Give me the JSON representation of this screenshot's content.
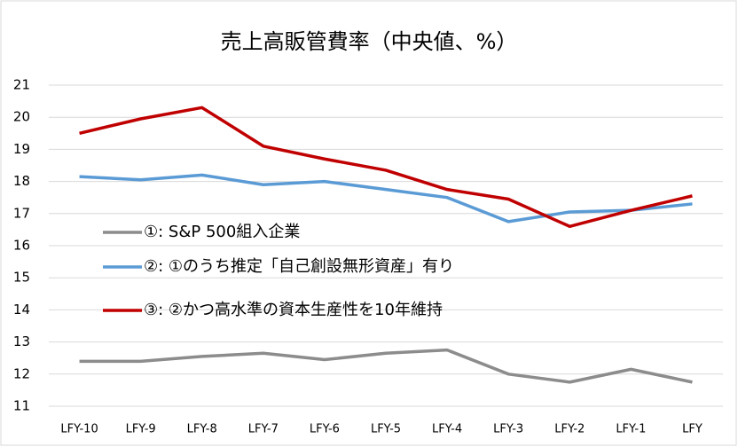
{
  "chart_data": {
    "type": "line",
    "title": "売上高販管費率（中央値、%）",
    "categories": [
      "LFY-10",
      "LFY-9",
      "LFY-8",
      "LFY-7",
      "LFY-6",
      "LFY-5",
      "LFY-4",
      "LFY-3",
      "LFY-2",
      "LFY-1",
      "LFY"
    ],
    "series": [
      {
        "name": "①: S&P 500組入企業",
        "color": "#8c8c8c",
        "values": [
          12.4,
          12.4,
          12.55,
          12.65,
          12.45,
          12.65,
          12.75,
          12.0,
          11.75,
          12.15,
          11.75
        ]
      },
      {
        "name": "②: ①のうち推定「自己創設無形資産」有り",
        "color": "#5b9bd5",
        "values": [
          18.15,
          18.05,
          18.2,
          17.9,
          18.0,
          17.75,
          17.5,
          16.75,
          17.05,
          17.1,
          17.3
        ]
      },
      {
        "name": "③: ②かつ高水準の資本生産性を10年維持",
        "color": "#c00000",
        "values": [
          19.5,
          19.95,
          20.3,
          19.1,
          18.7,
          18.35,
          17.75,
          17.45,
          16.6,
          17.1,
          17.55
        ]
      }
    ],
    "ylim": [
      11,
      21
    ],
    "yticks": [
      11,
      12,
      13,
      14,
      15,
      16,
      17,
      18,
      19,
      20,
      21
    ],
    "grid": true
  }
}
